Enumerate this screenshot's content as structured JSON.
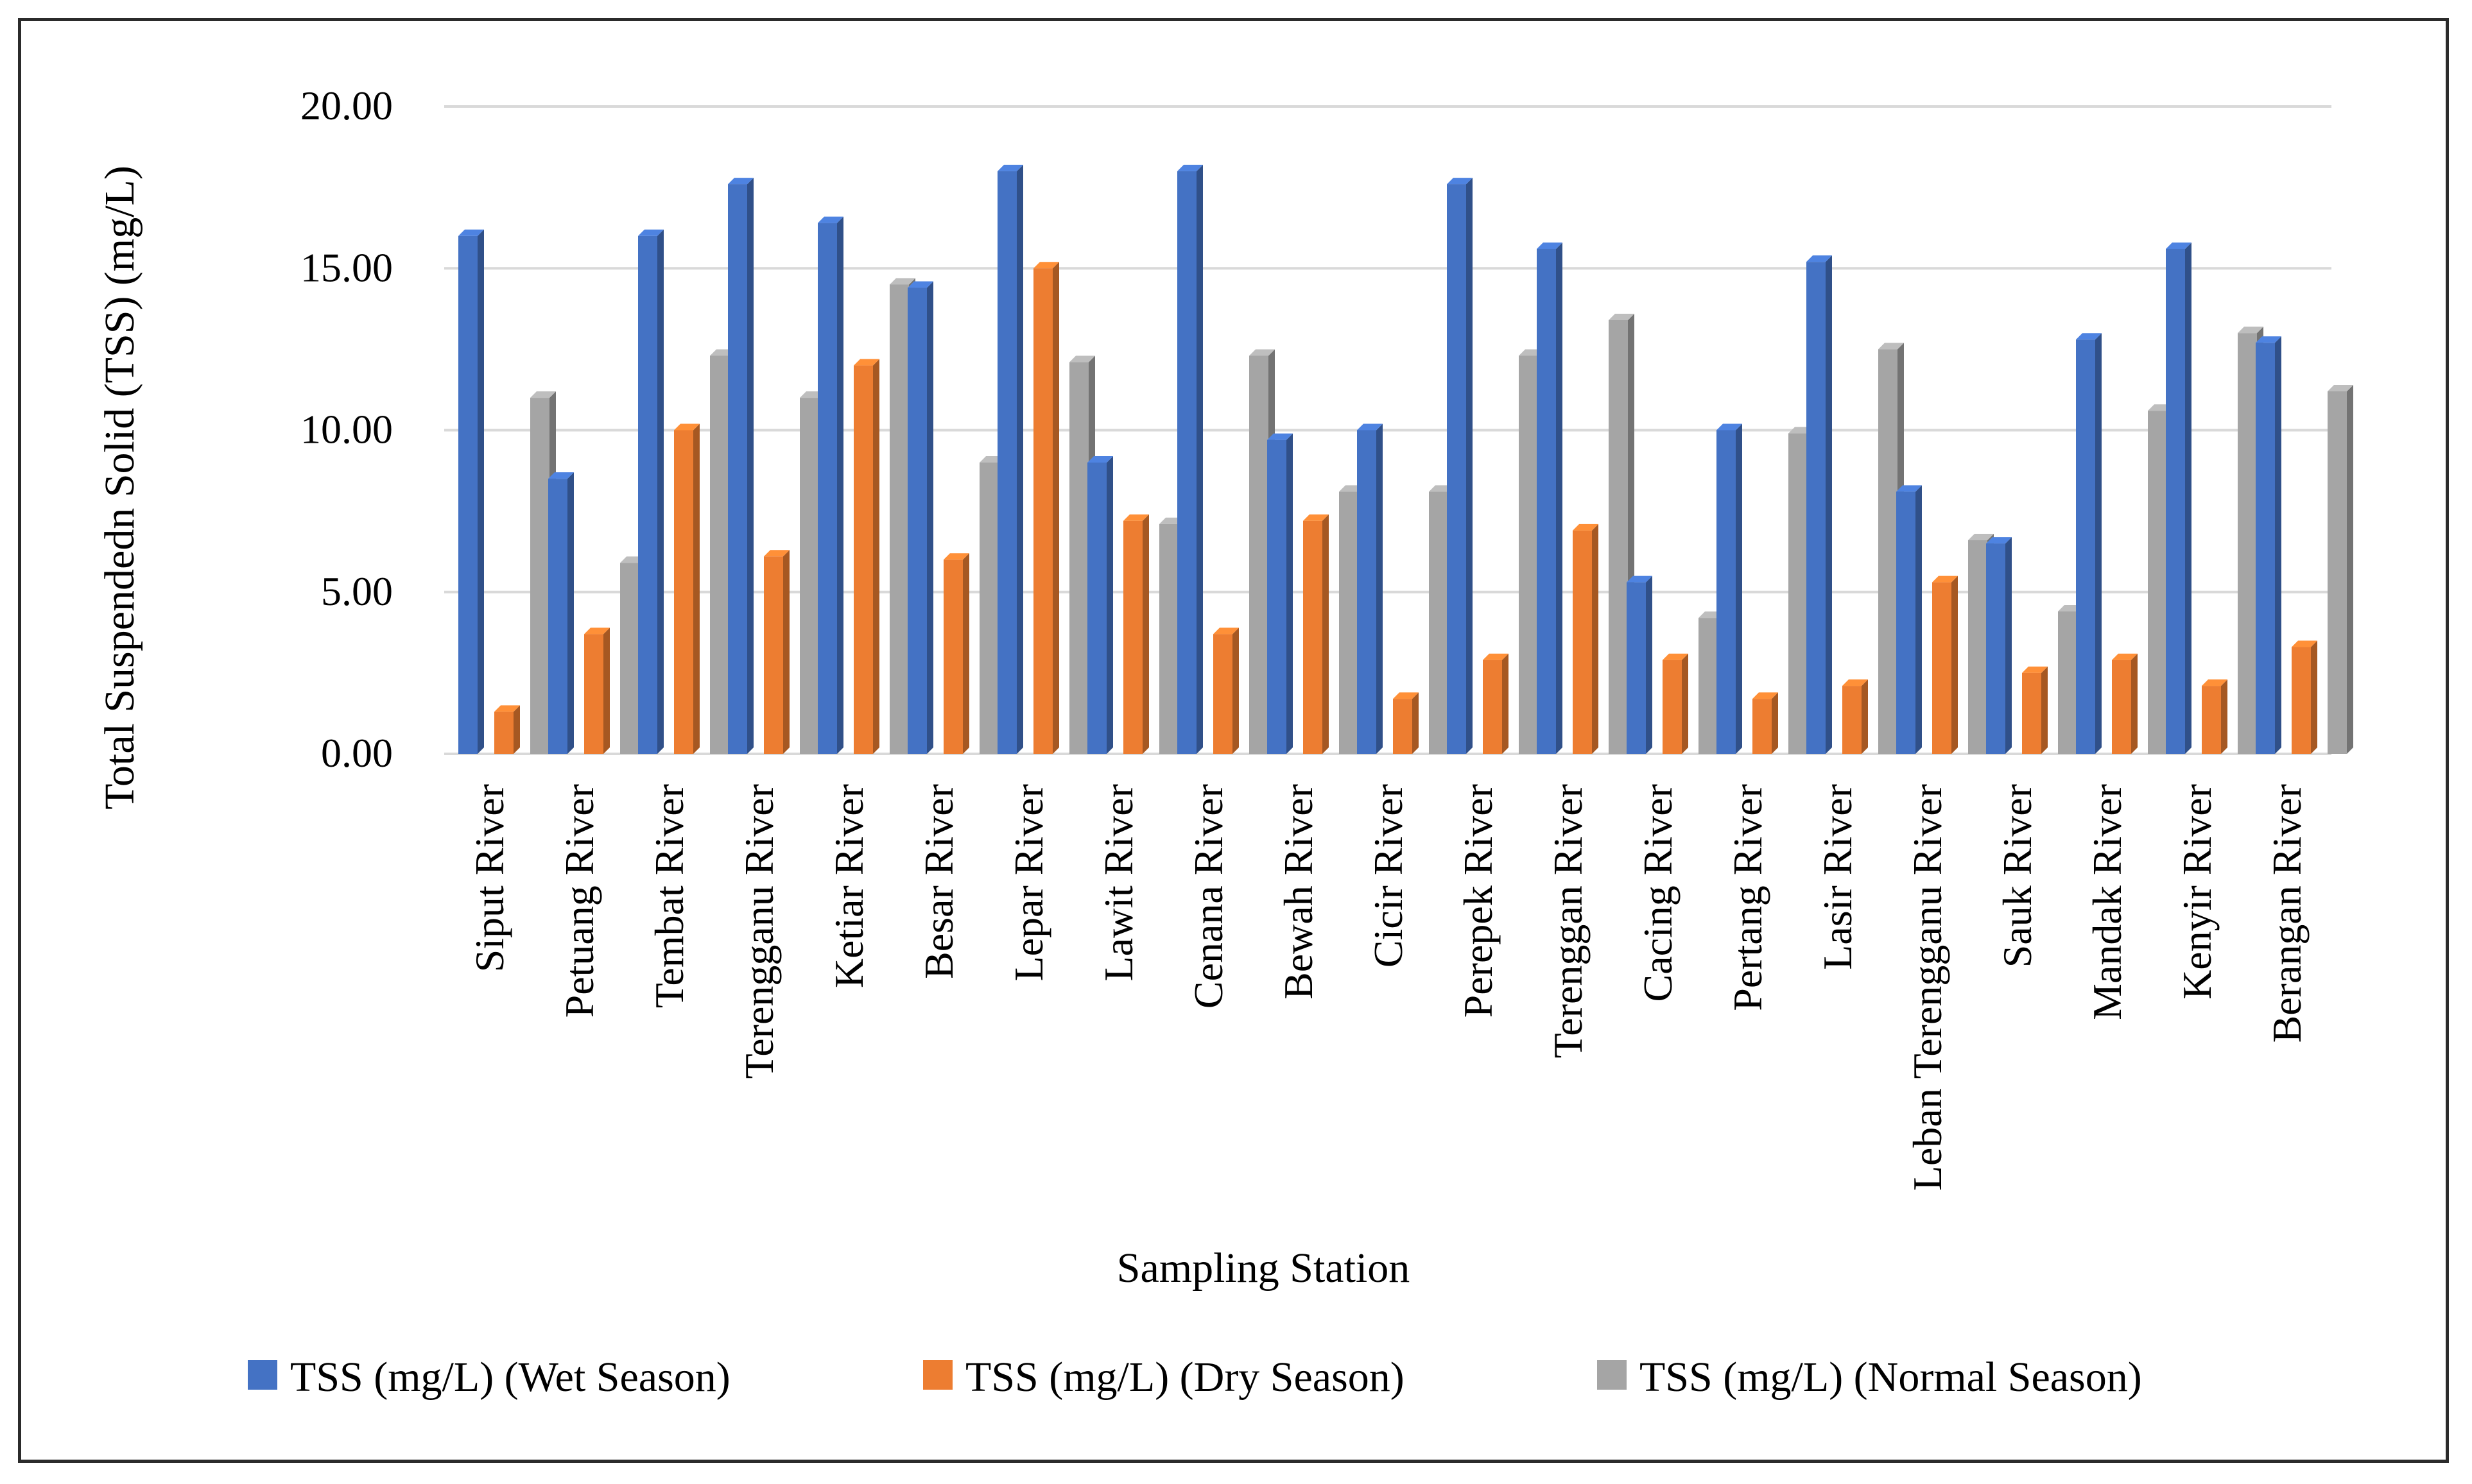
{
  "chart_data": {
    "type": "bar",
    "title": "",
    "xlabel": "Sampling Station",
    "ylabel": "Total Suspendedn Solid (TSS) (mg/L)",
    "ylim": [
      0,
      20
    ],
    "yticks": [
      "0.00",
      "5.00",
      "10.00",
      "15.00",
      "20.00"
    ],
    "grid": true,
    "legend_position": "bottom",
    "categories": [
      "Siput River",
      "Petuang River",
      "Tembat River",
      "Terengganu River",
      "Ketiar River",
      "Besar River",
      "Lepar River",
      "Lawit River",
      "Cenana River",
      "Bewah River",
      "Cicir River",
      "Perepek River",
      "Terenggan River",
      "Cacing River",
      "Pertang River",
      "Lasir River",
      "Leban Terengganu River",
      "Sauk River",
      "Mandak River",
      "Kenyir River",
      "Berangan River"
    ],
    "series": [
      {
        "name": "TSS (mg/L) (Wet Season)",
        "color": "#4472C4",
        "values": [
          16,
          8.5,
          16,
          17.6,
          16.4,
          14.4,
          18,
          9,
          18,
          9.7,
          10,
          17.6,
          15.6,
          5.3,
          10,
          15.2,
          8.1,
          6.5,
          12.8,
          15.6,
          12.7
        ]
      },
      {
        "name": "TSS (mg/L) (Dry Season)",
        "color": "#ED7D31",
        "values": [
          1.3,
          3.7,
          10,
          6.1,
          12,
          6,
          15,
          7.2,
          3.7,
          7.2,
          1.7,
          2.9,
          6.9,
          2.9,
          1.7,
          2.1,
          5.3,
          2.5,
          2.9,
          2.1,
          3.3
        ]
      },
      {
        "name": "TSS (mg/L) (Normal Season)",
        "color": "#A5A5A5",
        "values": [
          11,
          5.9,
          12.3,
          11,
          14.5,
          9,
          12.1,
          7.1,
          12.3,
          8.1,
          8.1,
          12.3,
          13.4,
          4.2,
          9.9,
          12.5,
          6.6,
          4.4,
          10.6,
          13,
          11.2
        ]
      }
    ]
  }
}
